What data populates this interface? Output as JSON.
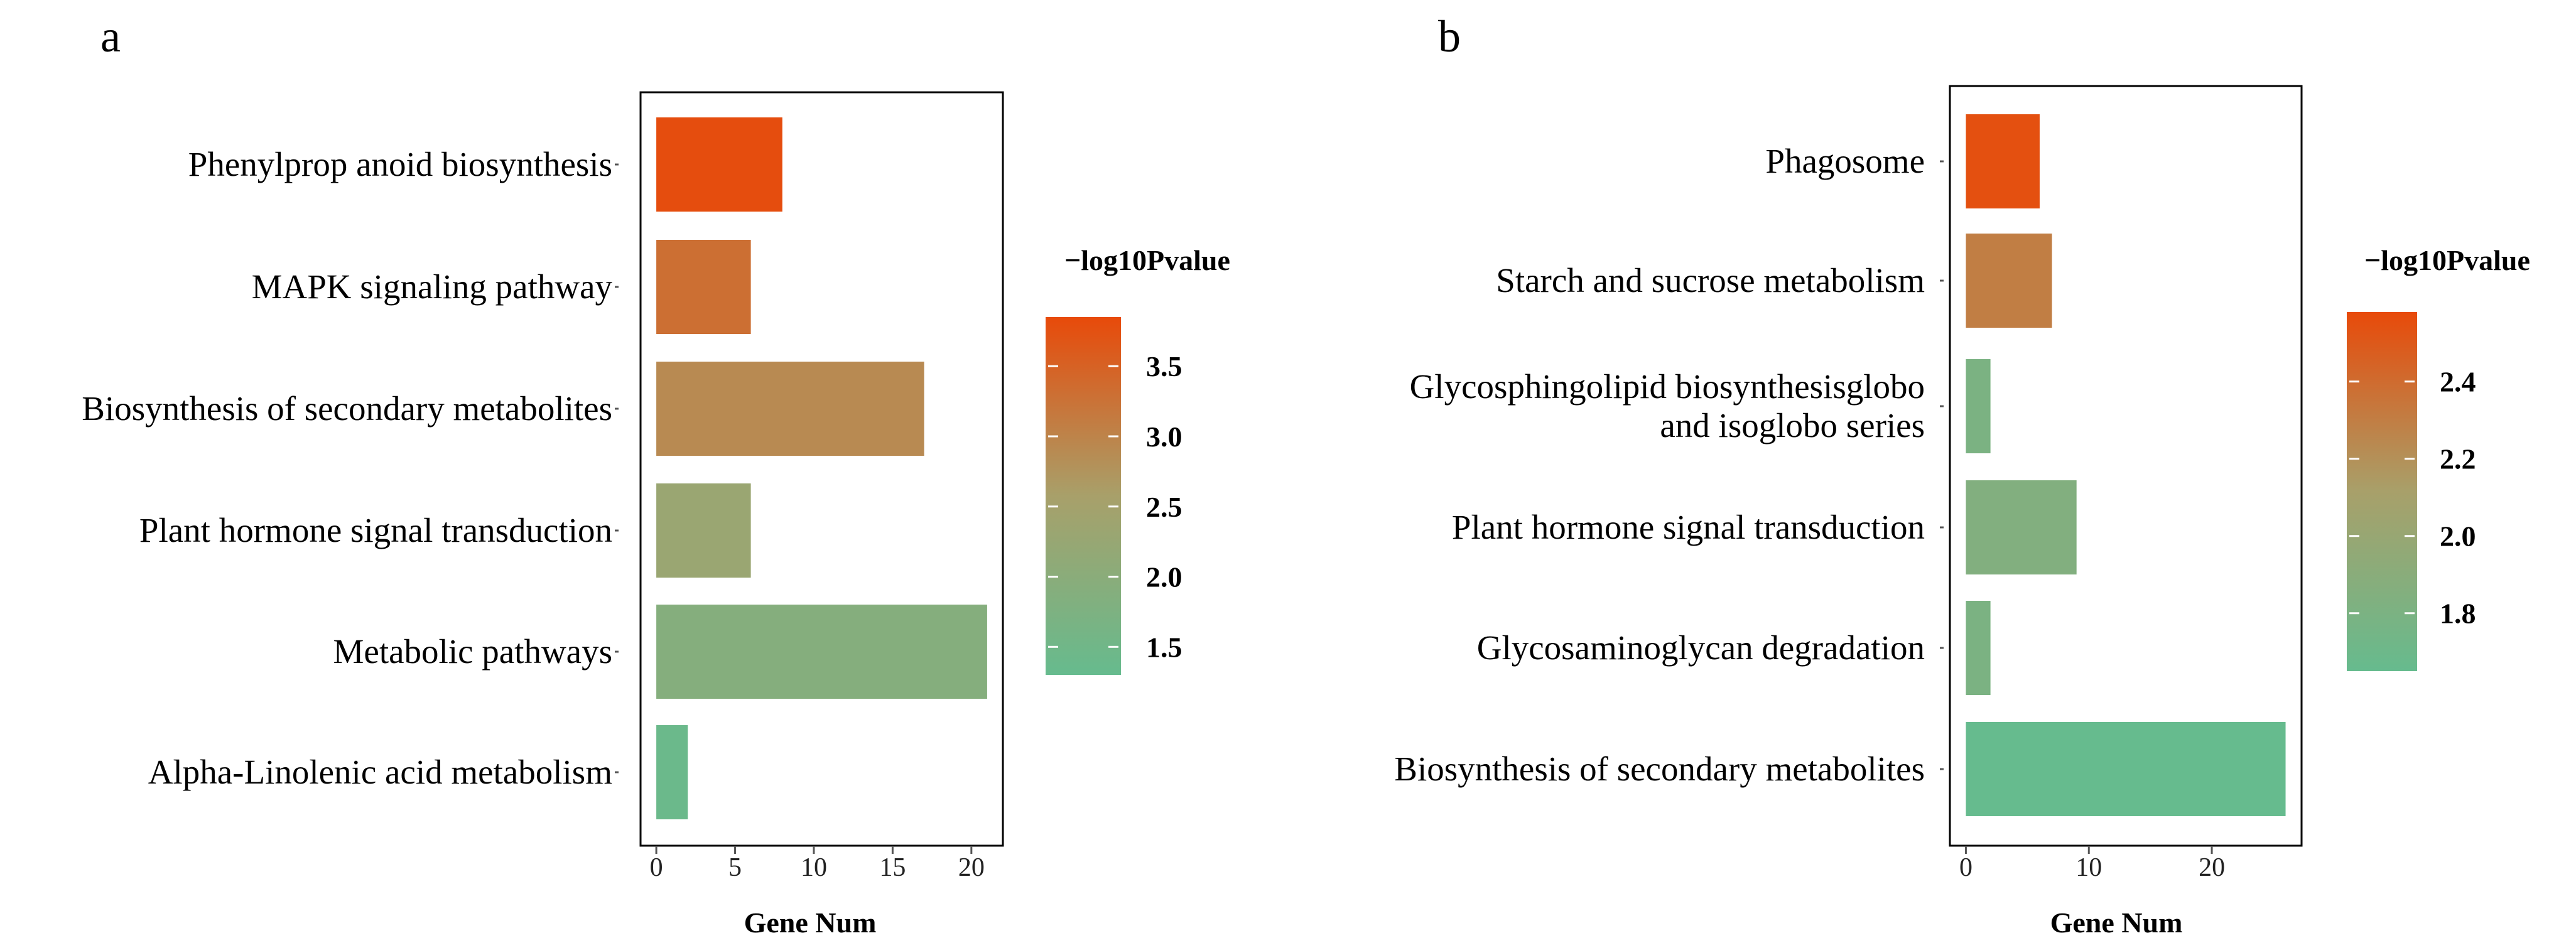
{
  "chart_data": [
    {
      "type": "bar",
      "panel": "a",
      "orientation": "horizontal",
      "categories": [
        "Phenylprop anoid biosynthesis",
        "MAPK signaling pathway",
        "Biosynthesis of secondary metabolites",
        "Plant hormone signal transduction",
        "Metabolic pathways",
        "Alpha-Linolenic acid metabolism"
      ],
      "values": [
        8,
        6,
        17,
        6,
        21,
        2
      ],
      "color_values": [
        3.8,
        3.3,
        2.9,
        2.3,
        1.9,
        1.4
      ],
      "xlabel": "Gene Num",
      "xticks": [
        "0",
        "5",
        "10",
        "15",
        "20"
      ],
      "xlim": [
        -1,
        22
      ],
      "legend": {
        "title": "−log10Pvalue",
        "ticks": [
          "3.5",
          "3.0",
          "2.5",
          "2.0",
          "1.5"
        ],
        "tick_values": [
          3.5,
          3.0,
          2.5,
          2.0,
          1.5
        ],
        "range": [
          1.3,
          3.85
        ],
        "placement": "right"
      }
    },
    {
      "type": "bar",
      "panel": "b",
      "orientation": "horizontal",
      "categories": [
        "Phagosome",
        "Starch and sucrose metabolism",
        "Glycosphingolipid biosynthesisglobo and isoglobo series",
        "Plant hormone signal transduction",
        "Glycosaminoglycan degradation",
        "Biosynthesis of secondary metabolites"
      ],
      "category_lines": [
        [
          "Phagosome"
        ],
        [
          "Starch and sucrose metabolism"
        ],
        [
          "Glycosphingolipid biosynthesisglobo",
          "and isoglobo series"
        ],
        [
          "Plant hormone signal transduction"
        ],
        [
          "Glycosaminoglycan degradation"
        ],
        [
          "Biosynthesis of secondary metabolites"
        ]
      ],
      "values": [
        6,
        7,
        2,
        9,
        2,
        26
      ],
      "color_values": [
        2.55,
        2.3,
        1.8,
        1.85,
        1.8,
        1.65
      ],
      "xlabel": "Gene Num",
      "xticks": [
        "0",
        "10",
        "20"
      ],
      "xlim": [
        -1.3,
        27.3
      ],
      "legend": {
        "title": "−log10Pvalue",
        "ticks": [
          "2.4",
          "2.2",
          "2.0",
          "1.8"
        ],
        "tick_values": [
          2.4,
          2.2,
          2.0,
          1.8
        ],
        "range": [
          1.65,
          2.58
        ],
        "placement": "right"
      }
    }
  ],
  "colors": {
    "low": "#66bb8e",
    "mid": "#a8a06a",
    "high": "#e84a0a",
    "axis": "#000000"
  }
}
